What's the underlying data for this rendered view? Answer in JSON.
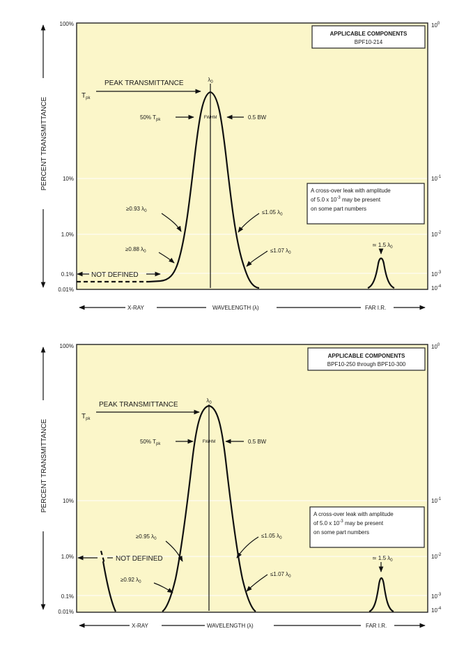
{
  "panels": [
    {
      "left_ticks": [
        "100%",
        "10%",
        "1.0%",
        "0.1%",
        "0.01%"
      ],
      "right_ticks": [
        {
          "base": "10",
          "exp": "0"
        },
        {
          "base": "10",
          "exp": "-1"
        },
        {
          "base": "10",
          "exp": "-2"
        },
        {
          "base": "10",
          "exp": "-3"
        },
        {
          "base": "10",
          "exp": "-4"
        }
      ],
      "ylabel": "PERCENT TRANSMITTANCE",
      "components_title": "APPLICABLE COMPONENTS",
      "components_value": "BPF10-214",
      "lambda_label": "λ",
      "lambda_sub": "0",
      "tpk_label": "T",
      "tpk_sub": "pk",
      "peak_label": "PEAK TRANSMITTANCE",
      "fifty_label": "50% T",
      "fifty_sub": "pk",
      "fwhm_label": "FWHM",
      "bw_label": "0.5 BW",
      "annot_left_upper": "≥0.93 λ",
      "annot_left_lower": "≥0.88 λ",
      "annot_right_upper": "≤1.05 λ",
      "annot_right_lower": "≤1.07 λ",
      "annot_sub": "0",
      "not_defined": "NOT DEFINED",
      "leak_lines": [
        "A cross-over leak with amplitude",
        "of 5.0 x 10",
        "may be present",
        "on some part numbers"
      ],
      "leak_exp": "-3",
      "leak_peak_label": "≃ 1.5 λ",
      "xray": "X-RAY",
      "wavelength": "WAVELENGTH (λ)",
      "far_ir": "FAR I.R."
    },
    {
      "left_ticks": [
        "100%",
        "10%",
        "1.0%",
        "0.1%",
        "0.01%"
      ],
      "right_ticks": [
        {
          "base": "10",
          "exp": "0"
        },
        {
          "base": "10",
          "exp": "-1"
        },
        {
          "base": "10",
          "exp": "-2"
        },
        {
          "base": "10",
          "exp": "-3"
        },
        {
          "base": "10",
          "exp": "-4"
        }
      ],
      "ylabel": "PERCENT TRANSMITTANCE",
      "components_title": "APPLICABLE COMPONENTS",
      "components_value": "BPF10-250 through BPF10-300",
      "lambda_label": "λ",
      "lambda_sub": "0",
      "tpk_label": "T",
      "tpk_sub": "pk",
      "peak_label": "PEAK TRANSMITTANCE",
      "fifty_label": "50% T",
      "fifty_sub": "pk",
      "fwhm_label": "FWHM",
      "bw_label": "0.5 BW",
      "annot_left_upper": "≥0.95 λ",
      "annot_left_lower": "≥0.92 λ",
      "annot_right_upper": "≤1.05 λ",
      "annot_right_lower": "≤1.07 λ",
      "annot_sub": "0",
      "not_defined": "NOT DEFINED",
      "leak_lines": [
        "A cross-over leak with amplitude",
        "of 5.0 x 10",
        "may be present",
        "on some part numbers"
      ],
      "leak_exp": "-3",
      "leak_peak_label": "≃ 1.5 λ",
      "xray": "X-RAY",
      "wavelength": "WAVELENGTH (λ)",
      "far_ir": "FAR I.R."
    }
  ]
}
